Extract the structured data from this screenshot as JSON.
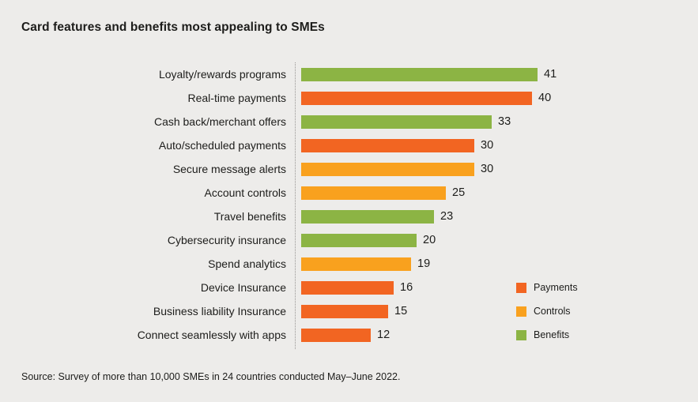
{
  "page": {
    "title": "Card features and benefits most appealing to SMEs",
    "source": "Source: Survey of more than 10,000 SMEs in 24 countries conducted May–June 2022."
  },
  "colors": {
    "background": "#EDECEA",
    "text": "#1D1D1B",
    "baseline_dotted": "#979593",
    "payments": "#F26522",
    "controls": "#F9A11E",
    "benefits": "#8CB444"
  },
  "chart_data": {
    "type": "bar",
    "orientation": "horizontal",
    "title": "Card features and benefits most appealing to SMEs",
    "categories": [
      "Loyalty/rewards programs",
      "Real-time payments",
      "Cash back/merchant offers",
      "Auto/scheduled payments",
      "Secure message alerts",
      "Account controls",
      "Travel benefits",
      "Cybersecurity insurance",
      "Spend analytics",
      "Device Insurance",
      "Business liability Insurance",
      "Connect seamlessly with apps"
    ],
    "values": [
      41,
      40,
      33,
      30,
      30,
      25,
      23,
      20,
      19,
      16,
      15,
      12
    ],
    "groups": [
      "Benefits",
      "Payments",
      "Benefits",
      "Payments",
      "Controls",
      "Controls",
      "Benefits",
      "Benefits",
      "Controls",
      "Payments",
      "Payments",
      "Payments"
    ],
    "group_colors": {
      "Payments": "#F26522",
      "Controls": "#F9A11E",
      "Benefits": "#8CB444"
    },
    "legend": [
      {
        "label": "Payments",
        "color": "#F26522"
      },
      {
        "label": "Controls",
        "color": "#F9A11E"
      },
      {
        "label": "Benefits",
        "color": "#8CB444"
      }
    ],
    "legend_position": "bottom-right",
    "xlim": [
      0,
      41
    ],
    "value_labels": true,
    "axes_visible": false,
    "gridlines": false,
    "source": "Source: Survey of more than 10,000 SMEs in 24 countries conducted May–June 2022."
  }
}
